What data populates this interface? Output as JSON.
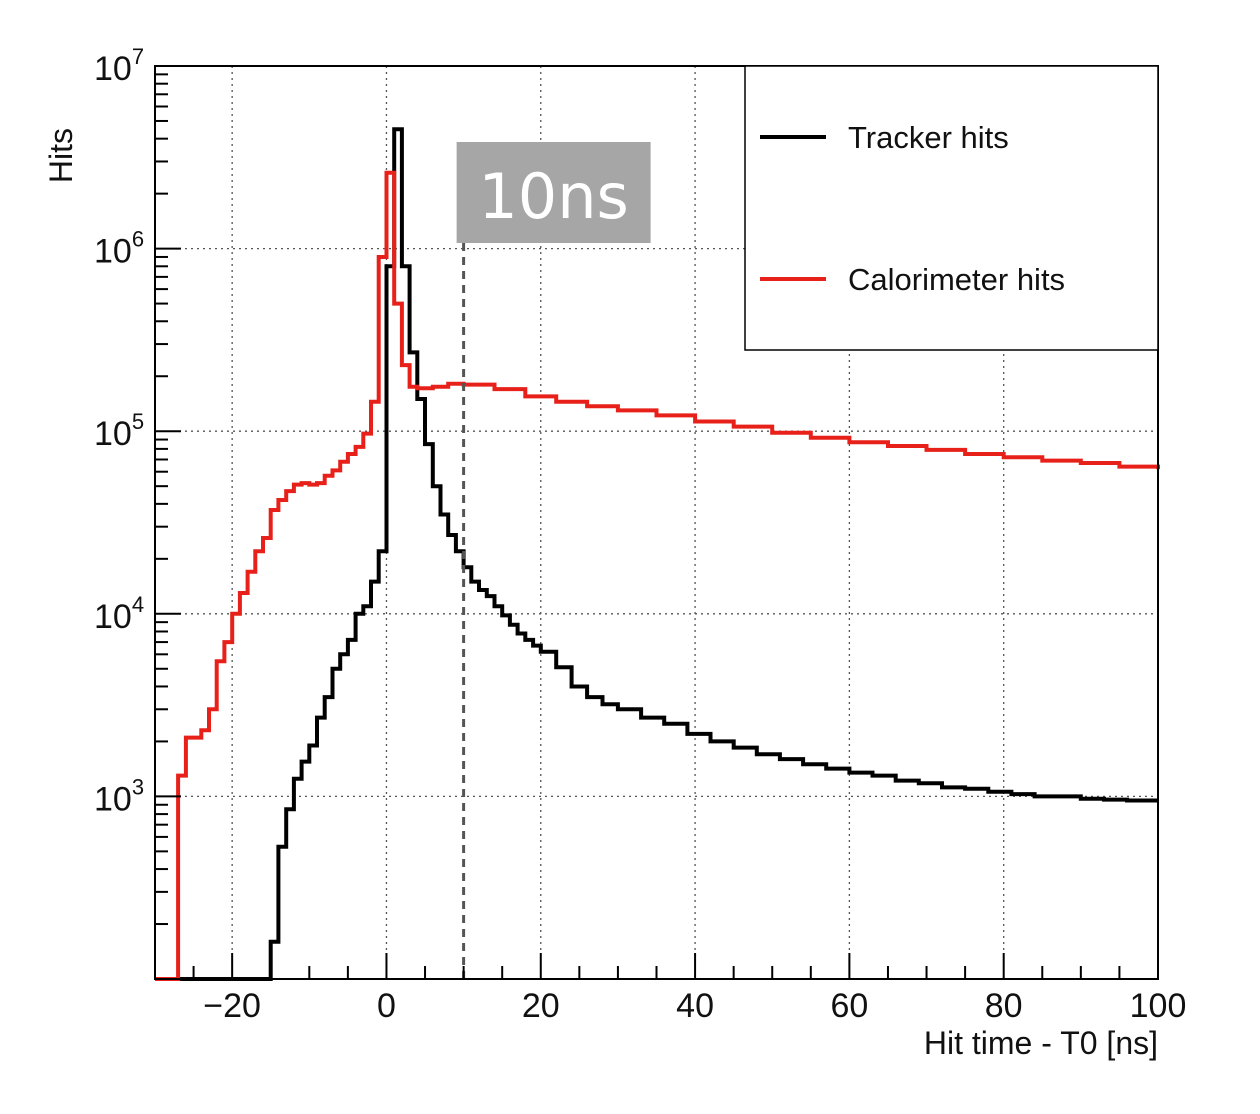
{
  "chart_data": {
    "type": "line",
    "title": "",
    "xlabel": "Hit time - T0 [ns]",
    "ylabel": "Hits",
    "xlim": [
      -30,
      100
    ],
    "ylim": [
      100,
      10000000
    ],
    "yscale": "log",
    "grid": true,
    "legend_position": "top-right",
    "x_tick_labels": [
      "−20",
      "0",
      "20",
      "40",
      "60",
      "80",
      "100"
    ],
    "x_ticks": [
      -20,
      0,
      20,
      40,
      60,
      80,
      100
    ],
    "y_ticks": [
      {
        "value": 1000,
        "base": "10",
        "exp": "3"
      },
      {
        "value": 10000,
        "base": "10",
        "exp": "4"
      },
      {
        "value": 100000,
        "base": "10",
        "exp": "5"
      },
      {
        "value": 1000000,
        "base": "10",
        "exp": "6"
      },
      {
        "value": 10000000,
        "base": "10",
        "exp": "7"
      }
    ],
    "series": [
      {
        "name": "Tracker hits",
        "color": "#000000",
        "points": [
          [
            -30,
            100
          ],
          [
            -16,
            100
          ],
          [
            -15,
            160
          ],
          [
            -14,
            530
          ],
          [
            -13,
            850
          ],
          [
            -12,
            1250
          ],
          [
            -11,
            1550
          ],
          [
            -10,
            1900
          ],
          [
            -9,
            2700
          ],
          [
            -8,
            3500
          ],
          [
            -7,
            5000
          ],
          [
            -6,
            6000
          ],
          [
            -5,
            7200
          ],
          [
            -4,
            10000
          ],
          [
            -3,
            11000
          ],
          [
            -2,
            15000
          ],
          [
            -1,
            22000
          ],
          [
            0,
            800000
          ],
          [
            1,
            4500000
          ],
          [
            2,
            800000
          ],
          [
            3,
            270000
          ],
          [
            4,
            150000
          ],
          [
            5,
            85000
          ],
          [
            6,
            50000
          ],
          [
            7,
            35000
          ],
          [
            8,
            27000
          ],
          [
            9,
            22000
          ],
          [
            10,
            18000
          ],
          [
            11,
            15000
          ],
          [
            12,
            13500
          ],
          [
            13,
            12500
          ],
          [
            14,
            11000
          ],
          [
            15,
            9800
          ],
          [
            16,
            8700
          ],
          [
            17,
            7800
          ],
          [
            18,
            7200
          ],
          [
            19,
            6700
          ],
          [
            20,
            6200
          ],
          [
            22,
            5100
          ],
          [
            24,
            4000
          ],
          [
            26,
            3500
          ],
          [
            28,
            3200
          ],
          [
            30,
            3000
          ],
          [
            33,
            2700
          ],
          [
            36,
            2500
          ],
          [
            39,
            2200
          ],
          [
            42,
            2000
          ],
          [
            45,
            1850
          ],
          [
            48,
            1700
          ],
          [
            51,
            1600
          ],
          [
            54,
            1500
          ],
          [
            57,
            1420
          ],
          [
            60,
            1350
          ],
          [
            63,
            1300
          ],
          [
            66,
            1220
          ],
          [
            69,
            1180
          ],
          [
            72,
            1120
          ],
          [
            75,
            1100
          ],
          [
            78,
            1060
          ],
          [
            81,
            1030
          ],
          [
            84,
            1000
          ],
          [
            87,
            1000
          ],
          [
            90,
            970
          ],
          [
            93,
            960
          ],
          [
            96,
            950
          ],
          [
            99,
            950
          ],
          [
            100,
            950
          ]
        ]
      },
      {
        "name": "Calorimeter hits",
        "color": "#e8201a",
        "points": [
          [
            -30,
            100
          ],
          [
            -28,
            100
          ],
          [
            -27,
            1300
          ],
          [
            -26,
            2100
          ],
          [
            -24,
            2300
          ],
          [
            -23,
            3000
          ],
          [
            -22,
            5500
          ],
          [
            -21,
            7000
          ],
          [
            -20,
            10000
          ],
          [
            -19,
            13000
          ],
          [
            -18,
            17000
          ],
          [
            -17,
            22000
          ],
          [
            -16,
            26000
          ],
          [
            -15,
            37000
          ],
          [
            -14,
            42000
          ],
          [
            -13,
            47000
          ],
          [
            -12,
            51000
          ],
          [
            -11,
            52000
          ],
          [
            -10,
            51000
          ],
          [
            -9,
            52000
          ],
          [
            -8,
            57000
          ],
          [
            -7,
            61000
          ],
          [
            -6,
            68000
          ],
          [
            -5,
            75000
          ],
          [
            -4,
            82000
          ],
          [
            -3,
            97000
          ],
          [
            -2,
            145000
          ],
          [
            -1,
            900000
          ],
          [
            0,
            2600000
          ],
          [
            1,
            500000
          ],
          [
            2,
            230000
          ],
          [
            3,
            175000
          ],
          [
            4,
            172000
          ],
          [
            6,
            175000
          ],
          [
            8,
            182000
          ],
          [
            10,
            180000
          ],
          [
            14,
            170000
          ],
          [
            18,
            155000
          ],
          [
            22,
            145000
          ],
          [
            26,
            137000
          ],
          [
            30,
            130000
          ],
          [
            35,
            122000
          ],
          [
            40,
            113000
          ],
          [
            45,
            106000
          ],
          [
            50,
            98000
          ],
          [
            55,
            92000
          ],
          [
            60,
            87000
          ],
          [
            65,
            83000
          ],
          [
            70,
            79000
          ],
          [
            75,
            75000
          ],
          [
            80,
            72000
          ],
          [
            85,
            69000
          ],
          [
            90,
            67000
          ],
          [
            95,
            64000
          ],
          [
            100,
            62000
          ]
        ]
      }
    ],
    "annotations": [
      {
        "label": "10ns",
        "x": 10
      }
    ]
  }
}
